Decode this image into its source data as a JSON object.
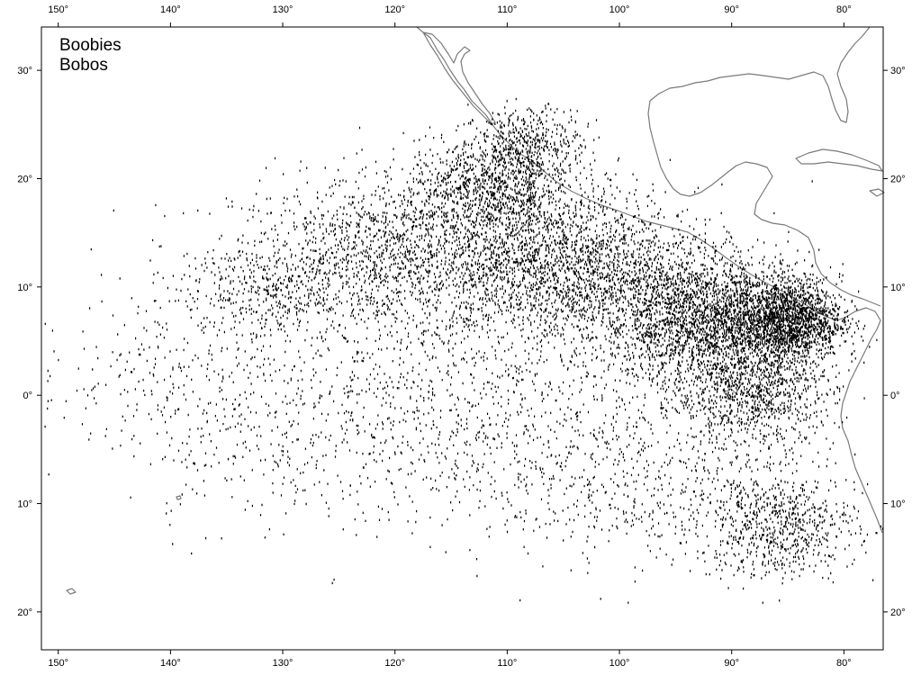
{
  "map": {
    "title_line1": "Boobies",
    "title_line2": "Bobos",
    "colors": {
      "points": "#000000",
      "coast": "#7a7a7a",
      "frame": "#000000",
      "background": "#ffffff"
    },
    "lon_ticks": [
      {
        "value": -150,
        "label": "150°"
      },
      {
        "value": -140,
        "label": "140°"
      },
      {
        "value": -130,
        "label": "130°"
      },
      {
        "value": -120,
        "label": "120°"
      },
      {
        "value": -110,
        "label": "110°"
      },
      {
        "value": -100,
        "label": "100°"
      },
      {
        "value": -90,
        "label": "90°"
      },
      {
        "value": -80,
        "label": "80°"
      }
    ],
    "lat_ticks": [
      {
        "value": 30,
        "label": "30°"
      },
      {
        "value": 20,
        "label": "20°"
      },
      {
        "value": 10,
        "label": "10°"
      },
      {
        "value": 0,
        "label": "0°"
      },
      {
        "value": -10,
        "label": "10°"
      },
      {
        "value": -20,
        "label": "20°"
      }
    ],
    "lon_range": [
      -151.5,
      -76.5
    ],
    "lat_range": [
      -23.5,
      34
    ],
    "sighting_density": [
      {
        "lon": -120,
        "lat": 13,
        "spread_lon": 12,
        "spread_lat": 6,
        "count": 1400
      },
      {
        "lon": -105,
        "lat": 12,
        "spread_lon": 10,
        "spread_lat": 6,
        "count": 2200
      },
      {
        "lon": -92,
        "lat": 7,
        "spread_lon": 8,
        "spread_lat": 5,
        "count": 2600
      },
      {
        "lon": -85,
        "lat": 7,
        "spread_lon": 4,
        "spread_lat": 3,
        "count": 1600
      },
      {
        "lon": -112,
        "lat": 19,
        "spread_lon": 6,
        "spread_lat": 4,
        "count": 900
      },
      {
        "lon": -108,
        "lat": 23,
        "spread_lon": 4,
        "spread_lat": 3,
        "count": 500
      },
      {
        "lon": -88,
        "lat": 0,
        "spread_lon": 6,
        "spread_lat": 4,
        "count": 900
      },
      {
        "lon": -86,
        "lat": -12,
        "spread_lon": 6,
        "spread_lat": 4,
        "count": 700
      },
      {
        "lon": -130,
        "lat": 10,
        "spread_lon": 8,
        "spread_lat": 4,
        "count": 450
      },
      {
        "lon": -140,
        "lat": 2,
        "spread_lon": 10,
        "spread_lat": 6,
        "count": 250
      },
      {
        "lon": -115,
        "lat": 0,
        "spread_lon": 18,
        "spread_lat": 8,
        "count": 900
      },
      {
        "lon": -100,
        "lat": -8,
        "spread_lon": 14,
        "spread_lat": 6,
        "count": 600
      },
      {
        "lon": -130,
        "lat": -6,
        "spread_lon": 12,
        "spread_lat": 6,
        "count": 200
      }
    ]
  }
}
